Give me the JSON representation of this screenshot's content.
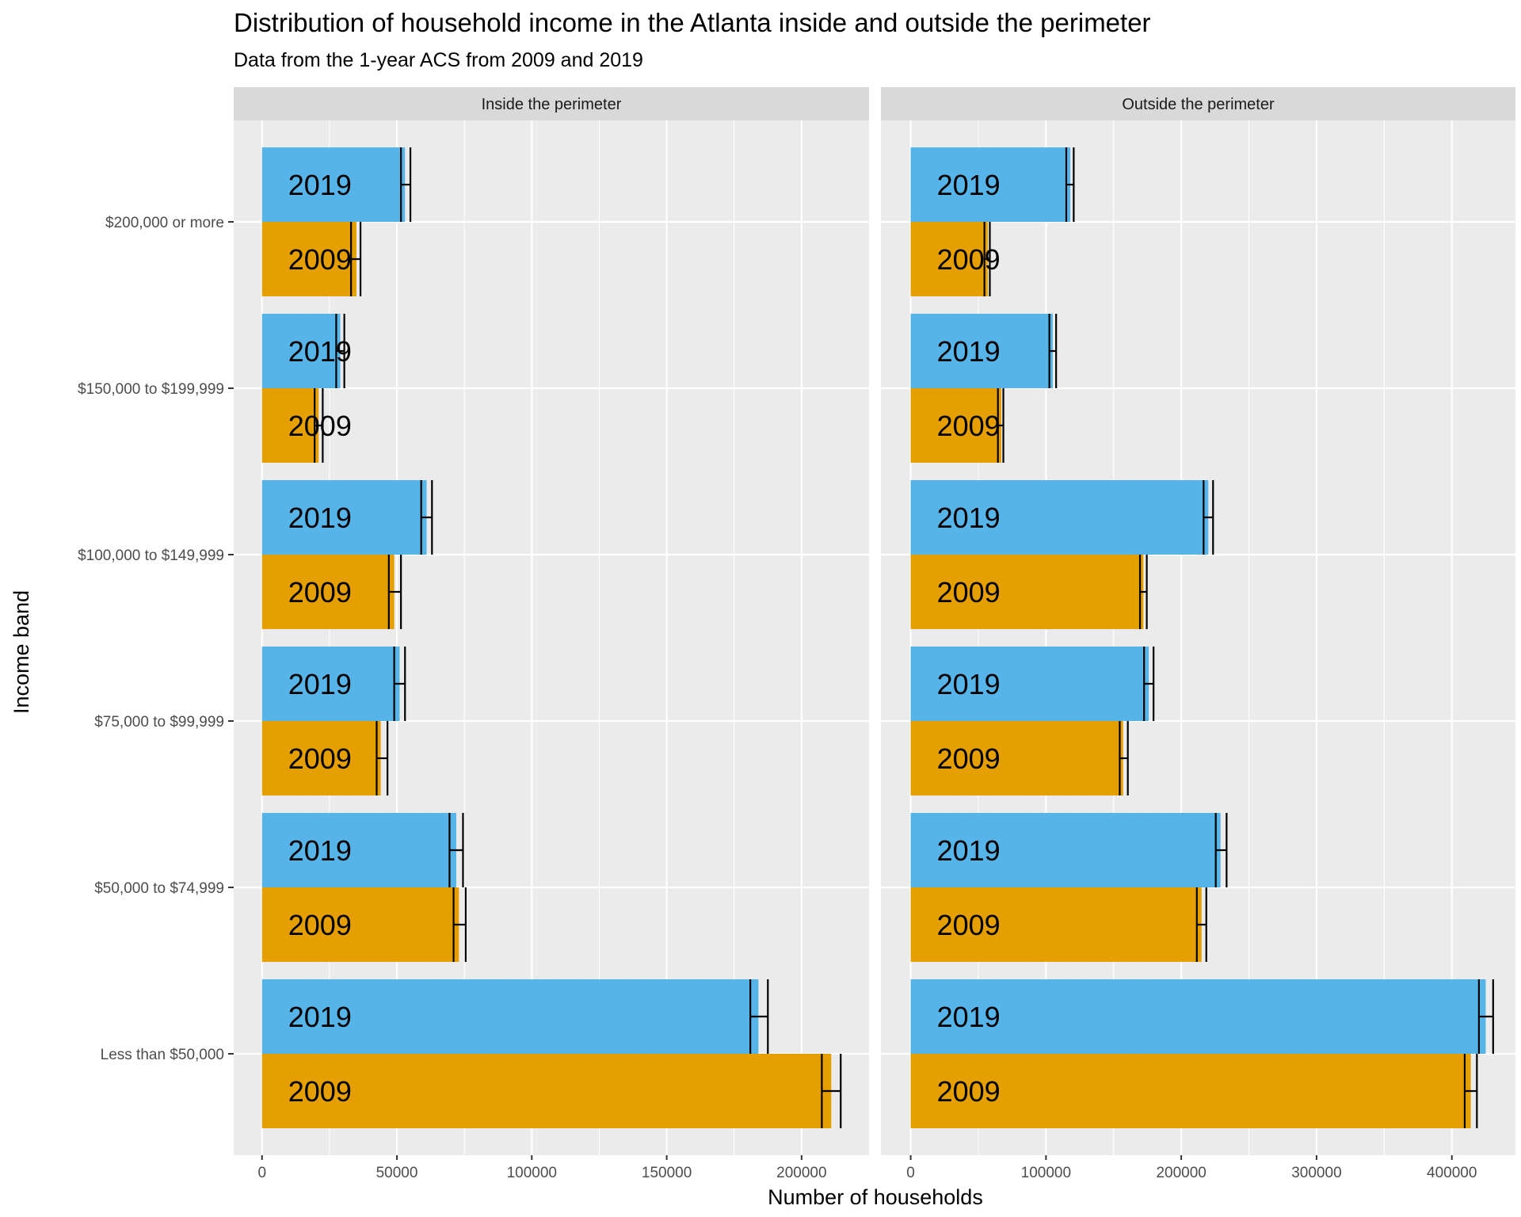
{
  "chart_data": {
    "type": "bar",
    "orientation": "horizontal",
    "title": "Distribution of household income in the Atlanta inside and outside the perimeter",
    "subtitle": "Data from the 1-year ACS from 2009 and 2019",
    "xlabel": "Number of households",
    "ylabel": "Income band",
    "grid": true,
    "categories": [
      "Less than $50,000",
      "$50,000 to $74,999",
      "$75,000 to $99,999",
      "$100,000 to $149,999",
      "$150,000 to $199,999",
      "$200,000 or more"
    ],
    "series_years": [
      "2019",
      "2009"
    ],
    "colors": {
      "2019": "#56B4E9",
      "2009": "#E69F00",
      "panel_bg": "#EBEBEB",
      "strip_bg": "#D9D9D9",
      "grid": "#FFFFFF",
      "errorbar": "#000000"
    },
    "panels": [
      {
        "name": "Inside the perimeter",
        "xlim": [
          -10500,
          225000
        ],
        "xticks": [
          0,
          50000,
          100000,
          150000,
          200000
        ],
        "series": [
          {
            "name": "2019",
            "values": [
              184000,
              72000,
              51000,
              61000,
              29000,
              53000
            ],
            "lower": [
              181000,
              69500,
              49000,
              59000,
              27500,
              51500
            ],
            "upper": [
              187500,
              74500,
              53000,
              63000,
              30500,
              55000
            ]
          },
          {
            "name": "2009",
            "values": [
              211000,
              73000,
              44000,
              49000,
              21000,
              35000
            ],
            "lower": [
              207500,
              71000,
              42500,
              47000,
              19500,
              33000
            ],
            "upper": [
              214500,
              75500,
              46500,
              51500,
              22500,
              36500
            ]
          }
        ]
      },
      {
        "name": "Outside the perimeter",
        "xlim": [
          -22000,
          447000
        ],
        "xticks": [
          0,
          100000,
          200000,
          300000,
          400000
        ],
        "series": [
          {
            "name": "2019",
            "values": [
              425000,
              229000,
              176000,
              220000,
              105000,
              118000
            ],
            "lower": [
              420000,
              225500,
              172500,
              216500,
              102500,
              115000
            ],
            "upper": [
              430500,
              233500,
              179500,
              223500,
              107500,
              120500
            ]
          },
          {
            "name": "2009",
            "values": [
              414000,
              215000,
              157000,
              172000,
              67000,
              57000
            ],
            "lower": [
              409500,
              211500,
              154500,
              169500,
              64500,
              54500
            ],
            "upper": [
              418500,
              218500,
              160500,
              174500,
              68500,
              58500
            ]
          }
        ]
      }
    ]
  }
}
